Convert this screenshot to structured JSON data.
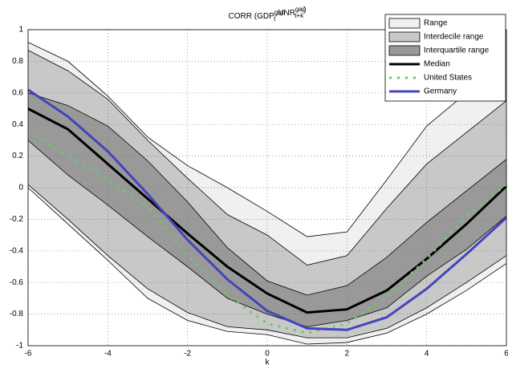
{
  "chart_data": {
    "type": "fan",
    "title": [
      "CORR (GDP",
      "gap",
      "t",
      ",UNR",
      "gap",
      "t+k",
      ")"
    ],
    "x_label": "k",
    "x": [
      -6,
      -5,
      -4,
      -3,
      -2,
      -1,
      0,
      1,
      2,
      3,
      4,
      5,
      6
    ],
    "xlim": [
      -6,
      6
    ],
    "xticks": [
      -6,
      -4,
      -2,
      0,
      2,
      4,
      6
    ],
    "ylim": [
      -1,
      1
    ],
    "yticks": [
      -1,
      -0.8,
      -0.6,
      -0.4,
      -0.2,
      0,
      0.2,
      0.4,
      0.6,
      0.8,
      1
    ],
    "grid": true,
    "legend": "upper right",
    "bands": [
      {
        "name": "Range",
        "color": "#f0f0f0",
        "upper": [
          0.92,
          0.8,
          0.58,
          0.32,
          0.14,
          0.0,
          -0.15,
          -0.31,
          -0.28,
          0.05,
          0.39,
          0.6,
          0.8
        ],
        "lower": [
          0.0,
          -0.23,
          -0.46,
          -0.7,
          -0.84,
          -0.91,
          -0.93,
          -0.99,
          -0.98,
          -0.92,
          -0.8,
          -0.65,
          -0.48
        ]
      },
      {
        "name": "Interdecile range",
        "color": "#c8c8c8",
        "upper": [
          0.87,
          0.74,
          0.56,
          0.3,
          0.06,
          -0.17,
          -0.3,
          -0.49,
          -0.43,
          -0.13,
          0.15,
          0.35,
          0.55
        ],
        "lower": [
          0.02,
          -0.2,
          -0.43,
          -0.64,
          -0.79,
          -0.88,
          -0.9,
          -0.95,
          -0.95,
          -0.89,
          -0.76,
          -0.6,
          -0.43
        ]
      },
      {
        "name": "Interquartile range",
        "color": "#999999",
        "upper": [
          0.6,
          0.52,
          0.39,
          0.17,
          -0.09,
          -0.38,
          -0.59,
          -0.68,
          -0.62,
          -0.44,
          -0.22,
          -0.02,
          0.18
        ],
        "lower": [
          0.3,
          0.08,
          -0.11,
          -0.31,
          -0.5,
          -0.7,
          -0.8,
          -0.88,
          -0.84,
          -0.76,
          -0.56,
          -0.39,
          -0.18
        ]
      }
    ],
    "series": [
      {
        "name": "Median",
        "color": "#000000",
        "style": "solid",
        "values": [
          0.5,
          0.37,
          0.15,
          -0.07,
          -0.29,
          -0.5,
          -0.67,
          -0.79,
          -0.77,
          -0.65,
          -0.45,
          -0.23,
          0.01
        ]
      },
      {
        "name": "United States",
        "color": "#66cc66",
        "style": "dotted",
        "values": [
          0.36,
          0.2,
          0.05,
          -0.12,
          -0.43,
          -0.68,
          -0.86,
          -0.92,
          -0.86,
          -0.69,
          -0.45,
          -0.18,
          0.02
        ]
      },
      {
        "name": "Germany",
        "color": "#4444bb",
        "style": "solid",
        "values": [
          0.62,
          0.45,
          0.23,
          -0.04,
          -0.33,
          -0.58,
          -0.78,
          -0.89,
          -0.9,
          -0.82,
          -0.64,
          -0.42,
          -0.19
        ]
      }
    ]
  }
}
